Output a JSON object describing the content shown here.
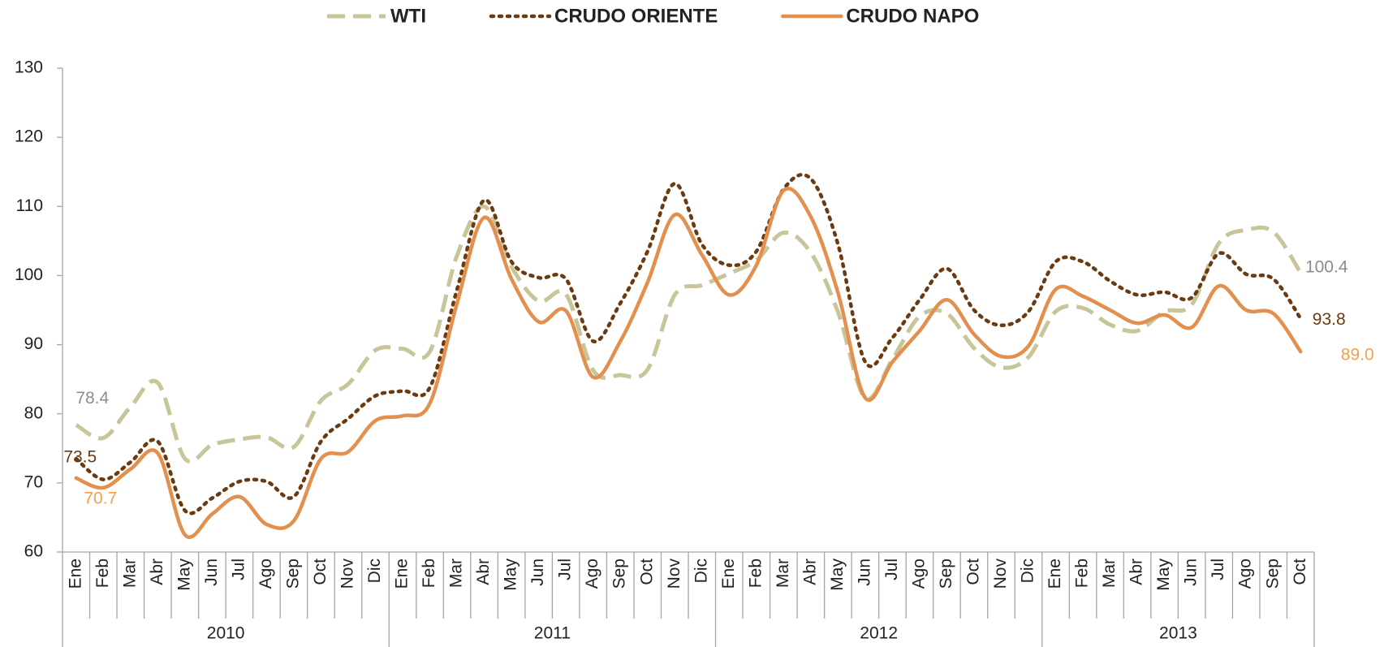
{
  "chart_data": {
    "type": "line",
    "categories": [
      "Ene",
      "Feb",
      "Mar",
      "Abr",
      "May",
      "Jun",
      "Jul",
      "Ago",
      "Sep",
      "Oct",
      "Nov",
      "Dic",
      "Ene",
      "Feb",
      "Mar",
      "Abr",
      "May",
      "Jun",
      "Jul",
      "Ago",
      "Sep",
      "Oct",
      "Nov",
      "Dic",
      "Ene",
      "Feb",
      "Mar",
      "Abr",
      "May",
      "Jun",
      "Jul",
      "Ago",
      "Sep",
      "Oct",
      "Nov",
      "Dic",
      "Ene",
      "Feb",
      "Mar",
      "Abr",
      "May",
      "Jun",
      "Jul",
      "Ago",
      "Sep",
      "Oct"
    ],
    "years": [
      "2010",
      "2011",
      "2012",
      "2013"
    ],
    "series": [
      {
        "name": "WTI",
        "color": "#c9c59a",
        "dash": "dashed",
        "label_color": "#8c8c8c",
        "values": [
          78.4,
          76.5,
          81,
          84.5,
          73.5,
          75.5,
          76.3,
          76.6,
          75.2,
          81.9,
          84.3,
          89.2,
          89.4,
          89,
          102.9,
          110,
          101.3,
          96.3,
          97.3,
          86.3,
          85.6,
          86.4,
          97.2,
          98.6,
          100.3,
          102.2,
          106.2,
          103.3,
          94.7,
          82.3,
          87.9,
          94.1,
          94.5,
          89.5,
          86.7,
          88.2,
          94.8,
          95.3,
          92.9,
          92,
          94.8,
          95.8,
          104.7,
          106.6,
          106.3,
          100.4
        ],
        "value_labels": [
          "78.4",
          null,
          null,
          null,
          null,
          null,
          null,
          null,
          null,
          null,
          null,
          null,
          null,
          null,
          null,
          null,
          null,
          null,
          null,
          null,
          null,
          null,
          null,
          null,
          null,
          null,
          null,
          null,
          null,
          null,
          null,
          null,
          null,
          null,
          null,
          null,
          null,
          null,
          null,
          null,
          null,
          null,
          null,
          null,
          null,
          "100.4"
        ]
      },
      {
        "name": "CRUDO ORIENTE",
        "color": "#6b3a10",
        "dash": "dotted",
        "label_color": "#6b3a10",
        "values": [
          73.5,
          70.5,
          73,
          76,
          66,
          67.8,
          70.2,
          70.2,
          68,
          76,
          79.3,
          82.6,
          83.3,
          83.8,
          98,
          110.9,
          102,
          99.7,
          99.5,
          90.5,
          96,
          103.5,
          113.3,
          104.5,
          101.5,
          103.5,
          112.5,
          114,
          104.5,
          87.5,
          91,
          96.5,
          101,
          95,
          92.8,
          94.8,
          102,
          102,
          99.2,
          97.2,
          97.6,
          96.8,
          103.2,
          100.2,
          99.5,
          93.8
        ],
        "value_labels": [
          "73.5",
          null,
          null,
          null,
          null,
          null,
          null,
          null,
          null,
          null,
          null,
          null,
          null,
          null,
          null,
          null,
          null,
          null,
          null,
          null,
          null,
          null,
          null,
          null,
          null,
          null,
          null,
          null,
          null,
          null,
          null,
          null,
          null,
          null,
          null,
          null,
          null,
          null,
          null,
          null,
          null,
          null,
          null,
          null,
          null,
          "93.8"
        ]
      },
      {
        "name": "CRUDO NAPO",
        "color": "#e3904f",
        "dash": "solid",
        "label_color": "#f2a04c",
        "values": [
          70.7,
          69.3,
          72,
          74.3,
          62.5,
          65.5,
          68,
          64,
          64.5,
          73.5,
          74.5,
          79,
          79.7,
          81.5,
          96,
          108.4,
          99.5,
          93.3,
          94.9,
          85.3,
          90.5,
          99,
          108.8,
          103,
          97.2,
          101.5,
          112.3,
          108.5,
          97.5,
          82.3,
          87.5,
          92,
          96.5,
          91.5,
          88.3,
          89.8,
          98,
          97,
          95,
          93.1,
          94.3,
          92.5,
          98.5,
          95,
          94.5,
          89
        ],
        "value_labels": [
          "70.7",
          null,
          null,
          null,
          null,
          null,
          null,
          null,
          null,
          null,
          null,
          null,
          null,
          null,
          null,
          null,
          null,
          null,
          null,
          null,
          null,
          null,
          null,
          null,
          null,
          null,
          null,
          null,
          null,
          null,
          null,
          null,
          null,
          null,
          null,
          null,
          null,
          null,
          null,
          null,
          null,
          null,
          null,
          null,
          null,
          "89.0"
        ]
      }
    ],
    "ylim": [
      60,
      130
    ],
    "yticks": [
      60,
      70,
      80,
      90,
      100,
      110,
      120,
      130
    ],
    "legend": "top"
  }
}
